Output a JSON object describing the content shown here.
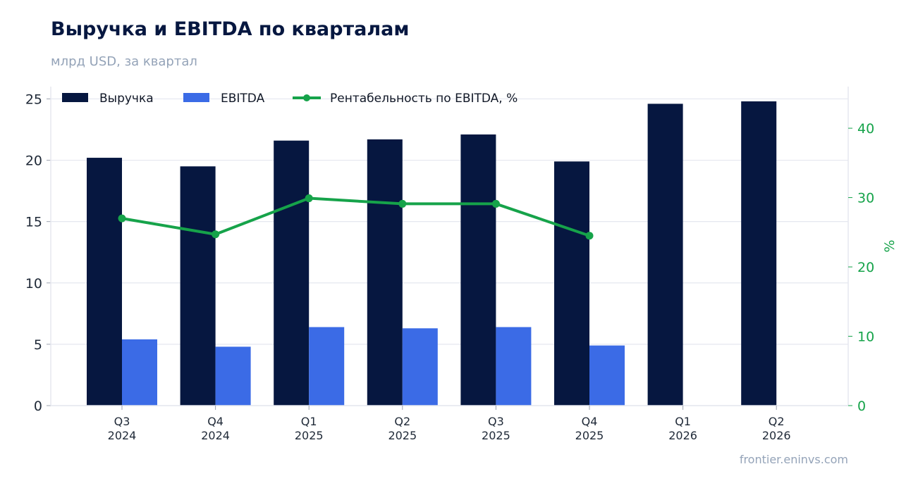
{
  "chart_title": "Выручка и EBITDA по кварталам",
  "chart_subtitle": "млрд USD, за квартал",
  "source": "frontier.eninvs.com",
  "colors": {
    "revenue": "#061740",
    "ebitda": "#3b6be6",
    "margin": "#16a34a",
    "grid": "#e5e7ef",
    "text": "#1f2937"
  },
  "chart_data": {
    "type": "bar",
    "categories": [
      "Q3\n2024",
      "Q4\n2024",
      "Q1\n2025",
      "Q2\n2025",
      "Q3\n2025",
      "Q4\n2025",
      "Q1\n2026",
      "Q2\n2026"
    ],
    "series": [
      {
        "name": "Выручка",
        "type": "bar",
        "axis": "left",
        "values": [
          20.2,
          19.5,
          21.6,
          21.7,
          22.1,
          19.9,
          24.6,
          24.8
        ]
      },
      {
        "name": "EBITDA",
        "type": "bar",
        "axis": "left",
        "values": [
          5.4,
          4.8,
          6.4,
          6.3,
          6.4,
          4.9,
          null,
          null
        ]
      },
      {
        "name": "Рентабельность по EBITDA, %",
        "type": "line",
        "axis": "right",
        "values": [
          27.0,
          24.7,
          29.9,
          29.1,
          29.1,
          24.5,
          null,
          null
        ]
      }
    ],
    "ylim": [
      0,
      26
    ],
    "yticks": [
      0,
      5,
      10,
      15,
      20,
      25
    ],
    "y2lim": [
      0,
      46
    ],
    "y2ticks": [
      0,
      10,
      20,
      30,
      40
    ],
    "ylabel": "",
    "y2label": "%",
    "xlabel": "",
    "legend": "top-left",
    "grid": true
  }
}
